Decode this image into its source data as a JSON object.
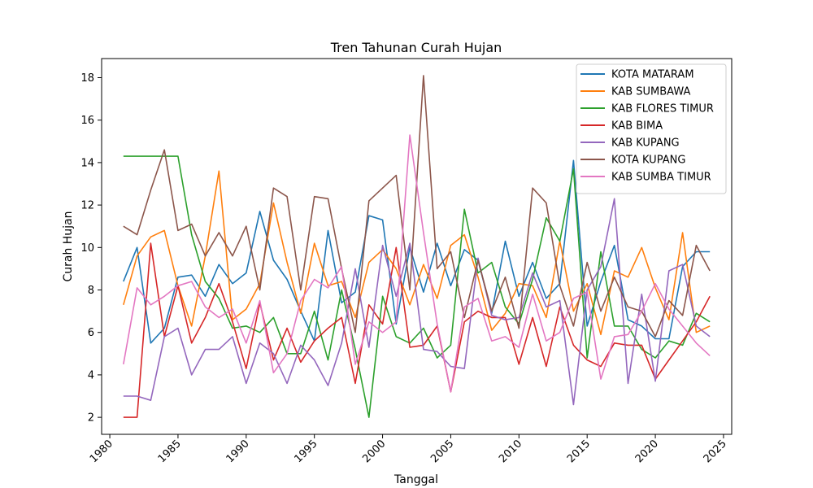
{
  "chart_data": {
    "type": "line",
    "title": "Tren Tahunan Curah Hujan",
    "xlabel": "Tanggal",
    "ylabel": "Curah Hujan",
    "xlim": [
      1979.4,
      2025.6
    ],
    "ylim": [
      1.2,
      18.9
    ],
    "xticks": [
      1980,
      1985,
      1990,
      1995,
      2000,
      2005,
      2010,
      2015,
      2020,
      2025
    ],
    "yticks": [
      2,
      4,
      6,
      8,
      10,
      12,
      14,
      16,
      18
    ],
    "legend_position": "top-right",
    "grid": false,
    "x": [
      1981,
      1982,
      1983,
      1984,
      1985,
      1986,
      1987,
      1988,
      1989,
      1990,
      1991,
      1992,
      1993,
      1994,
      1995,
      1996,
      1997,
      1998,
      1999,
      2000,
      2001,
      2002,
      2003,
      2004,
      2005,
      2006,
      2007,
      2008,
      2009,
      2010,
      2011,
      2012,
      2013,
      2014,
      2015,
      2016,
      2017,
      2018,
      2019,
      2020,
      2021,
      2022,
      2023,
      2024
    ],
    "series": [
      {
        "name": "KOTA MATARAM",
        "color": "#1f77b4",
        "values": [
          8.4,
          10.0,
          5.5,
          6.2,
          8.6,
          8.7,
          7.7,
          9.2,
          8.3,
          8.8,
          11.7,
          9.4,
          8.5,
          7.0,
          5.6,
          10.8,
          7.4,
          7.9,
          11.5,
          11.3,
          6.4,
          10.0,
          7.9,
          10.2,
          8.2,
          9.9,
          9.4,
          6.9,
          10.3,
          7.7,
          9.3,
          7.6,
          8.3,
          14.1,
          6.3,
          8.4,
          10.1,
          6.6,
          6.3,
          5.7,
          5.7,
          9.1,
          9.8,
          9.8
        ]
      },
      {
        "name": "KAB SUMBAWA",
        "color": "#ff7f0e",
        "values": [
          7.3,
          9.6,
          10.5,
          10.8,
          8.2,
          6.3,
          9.6,
          13.6,
          6.6,
          7.1,
          8.3,
          12.1,
          9.3,
          6.9,
          10.2,
          8.2,
          8.4,
          6.7,
          9.3,
          9.9,
          9.0,
          7.3,
          9.2,
          7.6,
          10.1,
          10.6,
          8.6,
          6.1,
          6.9,
          8.3,
          8.2,
          6.7,
          10.3,
          7.0,
          8.3,
          5.9,
          8.9,
          8.6,
          10.0,
          8.1,
          6.6,
          10.7,
          6.0,
          6.3
        ]
      },
      {
        "name": "KAB FLORES TIMUR",
        "color": "#2ca02c",
        "values": [
          14.3,
          14.3,
          14.3,
          14.3,
          14.3,
          10.6,
          8.4,
          7.6,
          6.2,
          6.3,
          6.0,
          6.7,
          5.0,
          5.0,
          7.0,
          4.7,
          8.0,
          5.2,
          2.0,
          7.7,
          5.8,
          5.5,
          6.2,
          4.8,
          5.4,
          11.8,
          8.8,
          9.3,
          7.2,
          6.4,
          8.5,
          11.4,
          10.3,
          13.7,
          4.8,
          9.8,
          6.3,
          6.3,
          5.2,
          4.8,
          5.6,
          5.4,
          6.9,
          6.5
        ]
      },
      {
        "name": "KAB BIMA",
        "color": "#d62728",
        "values": [
          2.0,
          2.0,
          10.2,
          5.8,
          8.2,
          5.5,
          6.7,
          8.3,
          6.5,
          4.3,
          7.4,
          4.7,
          6.2,
          4.6,
          5.6,
          6.2,
          6.7,
          3.6,
          7.3,
          6.4,
          10.0,
          5.3,
          5.4,
          6.3,
          3.2,
          6.5,
          7.0,
          6.7,
          6.7,
          4.5,
          6.7,
          4.4,
          7.2,
          5.4,
          4.7,
          4.4,
          5.5,
          5.4,
          5.4,
          3.8,
          4.7,
          5.6,
          6.5,
          7.7
        ]
      },
      {
        "name": "KAB KUPANG",
        "color": "#9467bd",
        "values": [
          3.0,
          3.0,
          2.8,
          5.8,
          6.2,
          4.0,
          5.2,
          5.2,
          5.8,
          3.6,
          5.5,
          5.0,
          3.6,
          5.4,
          4.7,
          3.5,
          5.5,
          9.0,
          5.3,
          10.1,
          7.7,
          10.2,
          5.2,
          5.1,
          4.4,
          4.3,
          9.5,
          6.8,
          6.6,
          6.7,
          8.8,
          7.2,
          7.5,
          2.6,
          8.0,
          9.1,
          12.3,
          3.6,
          7.8,
          3.7,
          8.9,
          9.2,
          6.3,
          5.8
        ]
      },
      {
        "name": "KOTA KUPANG",
        "color": "#8c564b",
        "values": [
          11.0,
          10.6,
          12.7,
          14.6,
          10.8,
          11.1,
          9.6,
          10.7,
          9.6,
          11.0,
          8.0,
          12.8,
          12.4,
          8.0,
          12.4,
          12.3,
          9.0,
          6.0,
          12.2,
          12.8,
          13.4,
          8.0,
          18.1,
          9.0,
          9.8,
          6.7,
          9.4,
          7.0,
          8.6,
          6.2,
          12.8,
          12.1,
          8.2,
          6.3,
          9.3,
          7.0,
          8.6,
          7.2,
          7.0,
          5.8,
          7.5,
          6.8,
          10.1,
          8.9
        ]
      },
      {
        "name": "KAB SUMBA TIMUR",
        "color": "#e377c2",
        "values": [
          4.5,
          8.1,
          7.3,
          7.7,
          8.2,
          8.4,
          7.2,
          6.7,
          7.1,
          5.5,
          7.5,
          4.1,
          5.0,
          7.5,
          8.5,
          8.1,
          9.1,
          4.5,
          6.5,
          6.0,
          6.5,
          15.3,
          10.7,
          6.4,
          3.2,
          7.2,
          7.6,
          5.6,
          5.8,
          5.3,
          7.8,
          5.6,
          6.0,
          7.6,
          7.9,
          3.8,
          5.8,
          5.9,
          7.0,
          8.3,
          7.1,
          6.3,
          5.5,
          4.9
        ]
      }
    ]
  }
}
